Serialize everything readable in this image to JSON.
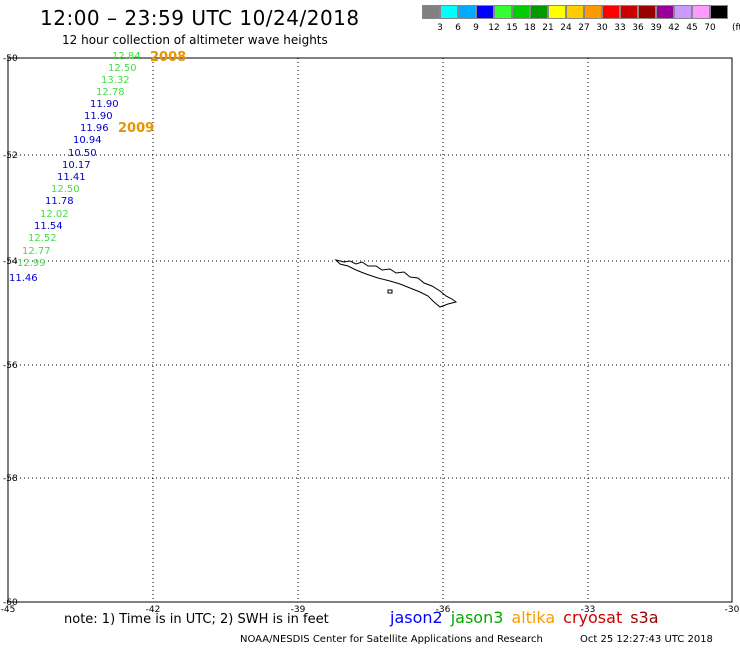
{
  "header": {
    "title": "12:00 – 23:59 UTC 10/24/2018",
    "subtitle": "12 hour collection of altimeter wave heights"
  },
  "color_scale": {
    "colors": [
      "#808080",
      "#00ffff",
      "#00aaff",
      "#0000ff",
      "#33ff33",
      "#00cc00",
      "#009900",
      "#ffff00",
      "#ffcc00",
      "#ff9900",
      "#ff0000",
      "#cc0000",
      "#990000",
      "#990099",
      "#cc99ff",
      "#ff99ff",
      "#000000"
    ],
    "labels": [
      "3",
      "6",
      "9",
      "12",
      "15",
      "18",
      "21",
      "24",
      "27",
      "30",
      "33",
      "36",
      "39",
      "42",
      "45",
      "70"
    ],
    "unit": "(ft)"
  },
  "map": {
    "lat_labels": [
      "-50",
      "-52",
      "-54",
      "-56",
      "-58",
      "-60"
    ],
    "lon_labels": [
      "-45",
      "-42",
      "-39",
      "-36",
      "-33",
      "-30"
    ],
    "year_labels": [
      "2008",
      "2009"
    ],
    "track_colors": {
      "blue": "#0000cc",
      "green": "#44dd44"
    },
    "readings": [
      {
        "v": "12.84",
        "c": "green"
      },
      {
        "v": "12.50",
        "c": "green"
      },
      {
        "v": "13.32",
        "c": "green"
      },
      {
        "v": "12.78",
        "c": "green"
      },
      {
        "v": "11.90",
        "c": "blue"
      },
      {
        "v": "11.90",
        "c": "blue"
      },
      {
        "v": "11.96",
        "c": "blue"
      },
      {
        "v": "10.94",
        "c": "blue"
      },
      {
        "v": "10.50",
        "c": "blue"
      },
      {
        "v": "10.17",
        "c": "blue"
      },
      {
        "v": "11.41",
        "c": "blue"
      },
      {
        "v": "12.50",
        "c": "green"
      },
      {
        "v": "11.78",
        "c": "blue"
      },
      {
        "v": "12.02",
        "c": "green"
      },
      {
        "v": "11.54",
        "c": "blue"
      },
      {
        "v": "12.52",
        "c": "green"
      },
      {
        "v": "12.77",
        "c": "green"
      },
      {
        "v": "12.99",
        "c": "green"
      },
      {
        "v": "11.46",
        "c": "blue"
      }
    ]
  },
  "footer": {
    "note": "note: 1) Time is in UTC; 2) SWH is in feet",
    "satellites": [
      {
        "name": "jason2",
        "color": "#0000ff"
      },
      {
        "name": "jason3",
        "color": "#00aa00"
      },
      {
        "name": "altika",
        "color": "#ff9900"
      },
      {
        "name": "cryosat",
        "color": "#cc0000"
      },
      {
        "name": "s3a",
        "color": "#990000"
      }
    ],
    "credit": "NOAA/NESDIS Center for Satellite Applications and Research",
    "timestamp": "Oct 25 12:27:43 UTC 2018"
  }
}
